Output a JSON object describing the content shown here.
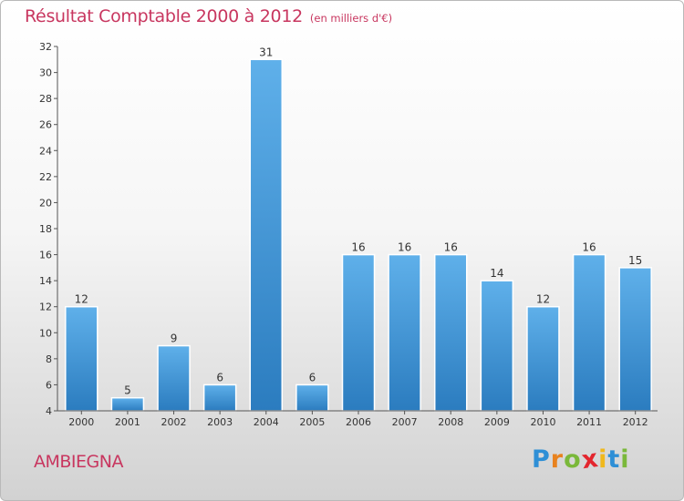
{
  "title": "Résultat Comptable 2000 à 2012",
  "subtitle": "(en milliers d'€)",
  "commune": "AMBIEGNA",
  "logo": {
    "letters": [
      "P",
      "r",
      "o",
      "x",
      "i",
      "t",
      "i"
    ],
    "colors": [
      "#2e8fd6",
      "#e8821e",
      "#7ab83a",
      "#e3262e",
      "#f0b81c",
      "#2e8fd6",
      "#7ab83a"
    ]
  },
  "colors": {
    "bar_top": "#5fb0ea",
    "bar_bottom": "#2b7cbf",
    "accent": "#c8365f",
    "axis": "#555555"
  },
  "chart_data": {
    "type": "bar",
    "title": "Résultat Comptable 2000 à 2012",
    "xlabel": "",
    "ylabel": "",
    "categories": [
      "2000",
      "2001",
      "2002",
      "2003",
      "2004",
      "2005",
      "2006",
      "2007",
      "2008",
      "2009",
      "2010",
      "2011",
      "2012"
    ],
    "values": [
      12,
      5,
      9,
      6,
      31,
      6,
      16,
      16,
      16,
      14,
      12,
      16,
      15
    ],
    "ylim": [
      4,
      32
    ],
    "yticks": [
      4,
      6,
      8,
      10,
      12,
      14,
      16,
      18,
      20,
      22,
      24,
      26,
      28,
      30,
      32
    ],
    "grid": false,
    "legend": "none"
  }
}
